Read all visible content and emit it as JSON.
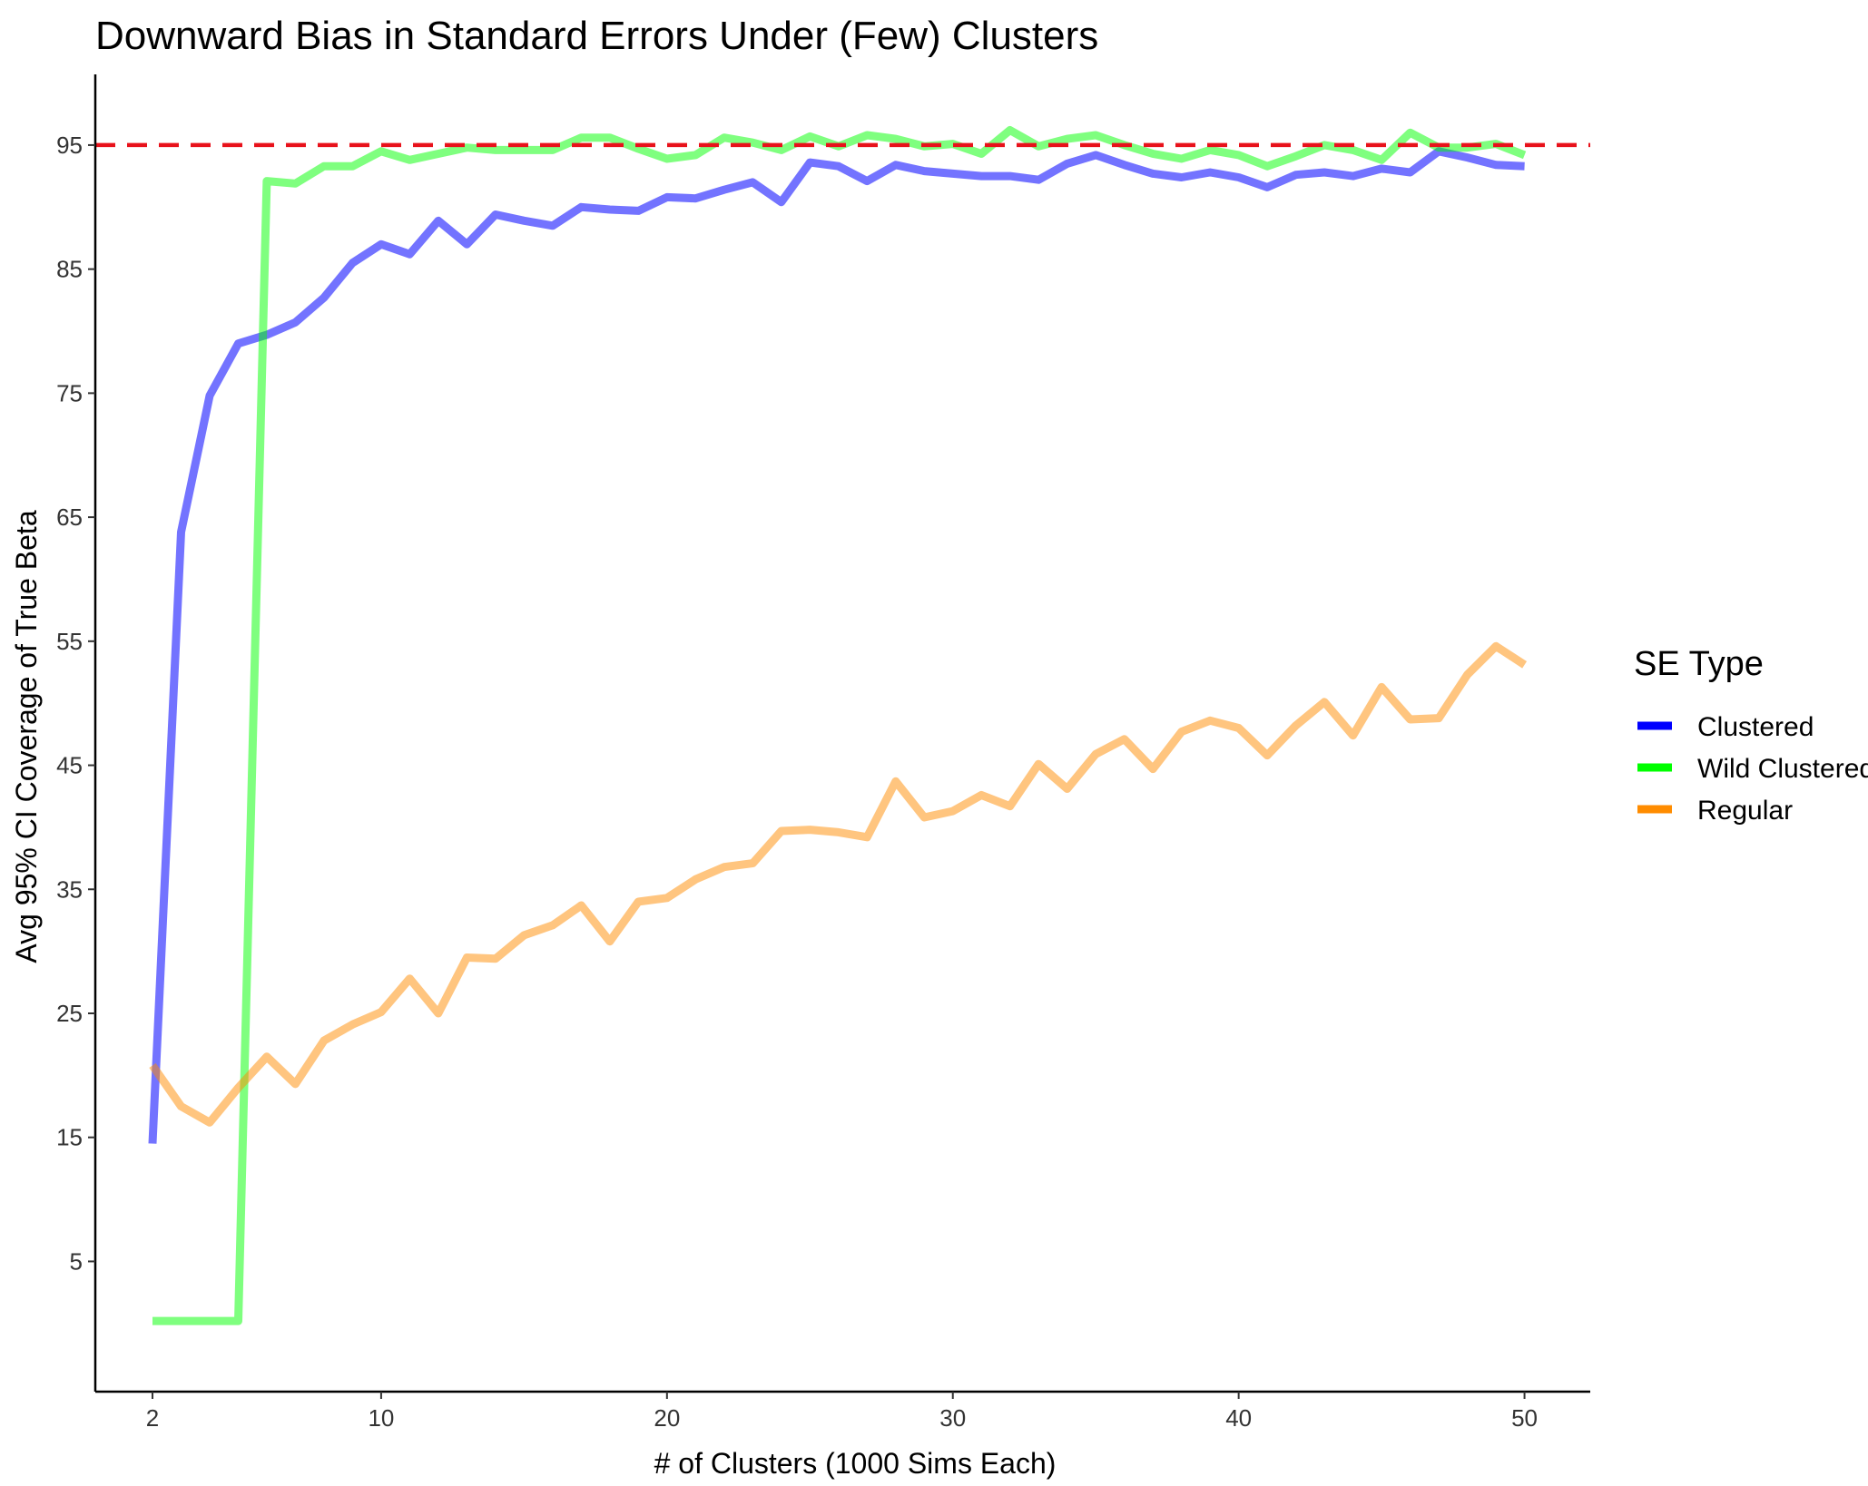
{
  "chart_data": {
    "type": "line",
    "title": "Downward Bias in Standard Errors Under (Few) Clusters",
    "xlabel": "# of Clusters (1000 Sims Each)",
    "ylabel": "Avg 95% CI Coverage of True Beta",
    "xlim": [
      0,
      52.3
    ],
    "ylim": [
      -5.5,
      100.7
    ],
    "xticks": [
      2,
      10,
      20,
      30,
      40,
      50
    ],
    "yticks": [
      5,
      15,
      25,
      35,
      45,
      55,
      65,
      75,
      85,
      95
    ],
    "reference_line": {
      "y": 95,
      "color": "#e8121b",
      "style": "dashed"
    },
    "grid": false,
    "legend": {
      "title": "SE Type",
      "position": "right"
    },
    "x": [
      2,
      3,
      4,
      5,
      6,
      7,
      8,
      9,
      10,
      11,
      12,
      13,
      14,
      15,
      16,
      17,
      18,
      19,
      20,
      21,
      22,
      23,
      24,
      25,
      26,
      27,
      28,
      29,
      30,
      31,
      32,
      33,
      34,
      35,
      36,
      37,
      38,
      39,
      40,
      41,
      42,
      43,
      44,
      45,
      46,
      47,
      48,
      49,
      50
    ],
    "series": [
      {
        "name": "Clustered",
        "color": "#0000ff",
        "legend_color": "#0000ff",
        "opacity": 0.55,
        "values": [
          14.5,
          63.8,
          74.8,
          79.0,
          79.7,
          80.7,
          82.7,
          85.5,
          87.0,
          86.2,
          88.9,
          87.0,
          89.4,
          88.9,
          88.5,
          90.0,
          89.8,
          89.7,
          90.8,
          90.7,
          91.4,
          92.0,
          90.4,
          93.6,
          93.3,
          92.1,
          93.4,
          92.9,
          92.7,
          92.5,
          92.5,
          92.2,
          93.5,
          94.2,
          93.4,
          92.7,
          92.4,
          92.8,
          92.4,
          91.6,
          92.6,
          92.8,
          92.5,
          93.1,
          92.8,
          94.5,
          94.0,
          93.4,
          93.3
        ]
      },
      {
        "name": "Wild Clustered",
        "color": "#00ff00",
        "legend_color": "#00ff00",
        "opacity": 0.5,
        "values": [
          0.2,
          0.2,
          0.2,
          0.2,
          92.1,
          91.9,
          93.3,
          93.3,
          94.5,
          93.8,
          94.3,
          94.8,
          94.6,
          94.6,
          94.6,
          95.6,
          95.6,
          94.7,
          93.9,
          94.2,
          95.6,
          95.2,
          94.6,
          95.7,
          94.9,
          95.8,
          95.5,
          94.9,
          95.1,
          94.3,
          96.2,
          94.9,
          95.5,
          95.8,
          95.0,
          94.3,
          93.9,
          94.6,
          94.2,
          93.3,
          94.1,
          95.0,
          94.6,
          93.8,
          96.0,
          94.8,
          94.8,
          95.1,
          94.2
        ]
      },
      {
        "name": "Regular",
        "color": "#ff8c00",
        "legend_color": "#ff8c00",
        "opacity": 0.5,
        "values": [
          20.8,
          17.5,
          16.2,
          19.0,
          21.5,
          19.3,
          22.8,
          24.1,
          25.1,
          27.8,
          25.0,
          29.5,
          29.4,
          31.3,
          32.1,
          33.7,
          30.8,
          34.0,
          34.3,
          35.8,
          36.8,
          37.1,
          39.7,
          39.8,
          39.6,
          39.2,
          43.7,
          40.8,
          41.3,
          42.6,
          41.7,
          45.1,
          43.1,
          45.9,
          47.1,
          44.7,
          47.7,
          48.6,
          48.0,
          45.8,
          48.2,
          50.1,
          47.4,
          51.3,
          48.7,
          48.8,
          52.3,
          54.6,
          53.1
        ]
      }
    ]
  }
}
